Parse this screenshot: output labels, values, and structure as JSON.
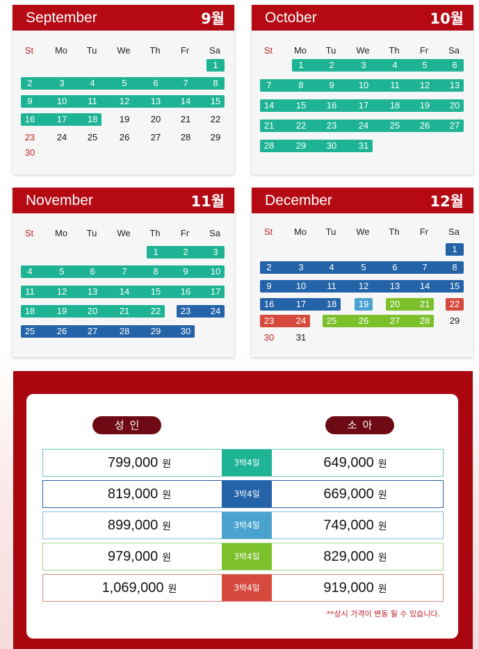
{
  "weekdays": [
    "St",
    "Mo",
    "Tu",
    "We",
    "Th",
    "Fr",
    "Sa"
  ],
  "months": [
    {
      "name": "September",
      "kor": "9월",
      "weeks": [
        [
          "",
          "",
          "",
          "",
          "",
          "",
          "1"
        ],
        [
          "2",
          "3",
          "4",
          "5",
          "6",
          "7",
          "8"
        ],
        [
          "9",
          "10",
          "11",
          "12",
          "13",
          "14",
          "15"
        ],
        [
          "16",
          "17",
          "18",
          "19",
          "20",
          "21",
          "22"
        ],
        [
          "23",
          "24",
          "25",
          "26",
          "27",
          "28",
          "29"
        ],
        [
          "30",
          "",
          "",
          "",
          "",
          "",
          ""
        ]
      ],
      "ranges": [
        {
          "week": 0,
          "from": 6,
          "to": 6,
          "color": "teal"
        },
        {
          "week": 1,
          "from": 0,
          "to": 6,
          "color": "teal"
        },
        {
          "week": 2,
          "from": 0,
          "to": 6,
          "color": "teal"
        },
        {
          "week": 3,
          "from": 0,
          "to": 2,
          "color": "teal"
        }
      ],
      "red_days": []
    },
    {
      "name": "October",
      "kor": "10월",
      "weeks": [
        [
          "",
          "1",
          "2",
          "3",
          "4",
          "5",
          "6"
        ],
        [
          "7",
          "8",
          "9",
          "10",
          "11",
          "12",
          "13"
        ],
        [
          "14",
          "15",
          "16",
          "17",
          "18",
          "19",
          "20"
        ],
        [
          "21",
          "22",
          "23",
          "24",
          "25",
          "26",
          "27"
        ],
        [
          "28",
          "29",
          "30",
          "31",
          "",
          "",
          ""
        ]
      ],
      "ranges": [
        {
          "week": 0,
          "from": 1,
          "to": 6,
          "color": "teal"
        },
        {
          "week": 1,
          "from": 0,
          "to": 6,
          "color": "teal"
        },
        {
          "week": 2,
          "from": 0,
          "to": 6,
          "color": "teal"
        },
        {
          "week": 3,
          "from": 0,
          "to": 6,
          "color": "teal"
        },
        {
          "week": 4,
          "from": 0,
          "to": 3,
          "color": "teal"
        }
      ],
      "red_days": []
    },
    {
      "name": "November",
      "kor": "11월",
      "weeks": [
        [
          "",
          "",
          "",
          "",
          "1",
          "2",
          "3"
        ],
        [
          "4",
          "5",
          "6",
          "7",
          "8",
          "9",
          "10"
        ],
        [
          "11",
          "12",
          "13",
          "14",
          "15",
          "16",
          "17"
        ],
        [
          "18",
          "19",
          "20",
          "21",
          "22",
          "23",
          "24"
        ],
        [
          "25",
          "26",
          "27",
          "28",
          "29",
          "30",
          ""
        ]
      ],
      "ranges": [
        {
          "week": 0,
          "from": 4,
          "to": 6,
          "color": "teal"
        },
        {
          "week": 1,
          "from": 0,
          "to": 6,
          "color": "teal"
        },
        {
          "week": 2,
          "from": 0,
          "to": 6,
          "color": "teal"
        },
        {
          "week": 3,
          "from": 0,
          "to": 4,
          "color": "teal"
        },
        {
          "week": 3,
          "from": 5,
          "to": 6,
          "color": "blue"
        },
        {
          "week": 4,
          "from": 0,
          "to": 5,
          "color": "blue"
        }
      ],
      "red_days": []
    },
    {
      "name": "December",
      "kor": "12월",
      "weeks": [
        [
          "",
          "",
          "",
          "",
          "",
          "",
          "1"
        ],
        [
          "2",
          "3",
          "4",
          "5",
          "6",
          "7",
          "8"
        ],
        [
          "9",
          "10",
          "11",
          "12",
          "13",
          "14",
          "15"
        ],
        [
          "16",
          "17",
          "18",
          "19",
          "20",
          "21",
          "22"
        ],
        [
          "23",
          "24",
          "25",
          "26",
          "27",
          "28",
          "29"
        ],
        [
          "30",
          "31",
          "",
          "",
          "",
          "",
          ""
        ]
      ],
      "ranges": [
        {
          "week": 0,
          "from": 6,
          "to": 6,
          "color": "blue"
        },
        {
          "week": 1,
          "from": 0,
          "to": 6,
          "color": "blue"
        },
        {
          "week": 2,
          "from": 0,
          "to": 6,
          "color": "blue"
        },
        {
          "week": 3,
          "from": 0,
          "to": 2,
          "color": "blue"
        },
        {
          "week": 3,
          "from": 3,
          "to": 3,
          "color": "lblue"
        },
        {
          "week": 3,
          "from": 4,
          "to": 5,
          "color": "green"
        },
        {
          "week": 3,
          "from": 6,
          "to": 6,
          "color": "red"
        },
        {
          "week": 4,
          "from": 0,
          "to": 1,
          "color": "red"
        },
        {
          "week": 4,
          "from": 2,
          "to": 5,
          "color": "green"
        }
      ],
      "red_days": []
    }
  ],
  "price": {
    "adult_label": "성인",
    "child_label": "소아",
    "currency": "원",
    "rows": [
      {
        "adult": "799,000",
        "child": "649,000",
        "badge": "3박4일",
        "color": "teal",
        "border": "#6cc8c0"
      },
      {
        "adult": "819,000",
        "child": "669,000",
        "badge": "3박4일",
        "color": "blue",
        "border": "#2463a8"
      },
      {
        "adult": "899,000",
        "child": "749,000",
        "badge": "3박4일",
        "color": "lblue",
        "border": "#7fbddc"
      },
      {
        "adult": "979,000",
        "child": "829,000",
        "badge": "3박4일",
        "color": "green",
        "border": "#a9d68a"
      },
      {
        "adult": "1,069,000",
        "child": "919,000",
        "badge": "3박4일",
        "color": "red",
        "border": "#d68a82"
      }
    ],
    "note": "**상시 가격이 변동 될 수 있습니다."
  },
  "colors": {
    "header_red": "#b50a14",
    "teal": "#1db394",
    "blue": "#2463a8",
    "lblue": "#4aa3cf",
    "green": "#7cc02c",
    "red": "#d64a3e"
  }
}
